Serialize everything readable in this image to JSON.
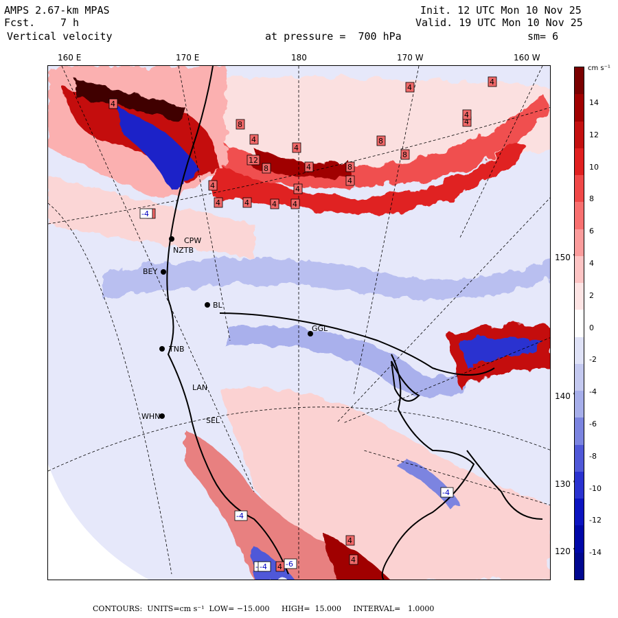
{
  "header": {
    "model": "AMPS 2.67-km MPAS",
    "fcst_label": "Fcst.",
    "fcst_value": "7 h",
    "field": "Vertical velocity",
    "init": "Init. 12 UTC Mon 10 Nov 25",
    "valid": "Valid. 19 UTC Mon 10 Nov 25",
    "level": "at pressure =  700 hPa",
    "smooth": "sm= 6"
  },
  "longitude_labels": [
    "160 E",
    "170 E",
    "180",
    "170 W",
    "160 W"
  ],
  "latitude_labels": [
    "150 W",
    "140 W",
    "130 W",
    "120 W"
  ],
  "stations": [
    "CPW",
    "NZTB",
    "BEY",
    "BL",
    "GGL",
    "TNB",
    "LAN",
    "WHN",
    "SEL"
  ],
  "colorbar": {
    "unit": "cm s⁻¹",
    "ticks": [
      "14",
      "12",
      "10",
      "8",
      "6",
      "4",
      "2",
      "0",
      "-2",
      "-4",
      "-6",
      "-8",
      "-10",
      "-12",
      "-14"
    ],
    "colors": [
      "#7a0000",
      "#a00000",
      "#c41010",
      "#e02020",
      "#f04848",
      "#f87070",
      "#fb9c9c",
      "#fdc4c4",
      "#fde4e4",
      "#ffffff",
      "#dfe2f7",
      "#c4c9f0",
      "#a6aeea",
      "#7b84e0",
      "#5058d8",
      "#2a32d0",
      "#0c14c0",
      "#0008a8",
      "#000890"
    ]
  },
  "footer": {
    "contours": "CONTOURS:  UNITS=cm s⁻¹  LOW= −15.000     HIGH=  15.000     INTERVAL=   1.0000"
  },
  "map_labels": [
    "4",
    "4",
    "4",
    "4",
    "8",
    "4",
    "4",
    "8",
    "12",
    "4",
    "8",
    "8",
    "8",
    "4",
    "4",
    "4",
    "4",
    "4",
    "4",
    "4",
    "2",
    "-4",
    "4",
    "-4",
    "4",
    "-4",
    "4",
    "-4",
    "-4",
    "-6",
    "4"
  ]
}
